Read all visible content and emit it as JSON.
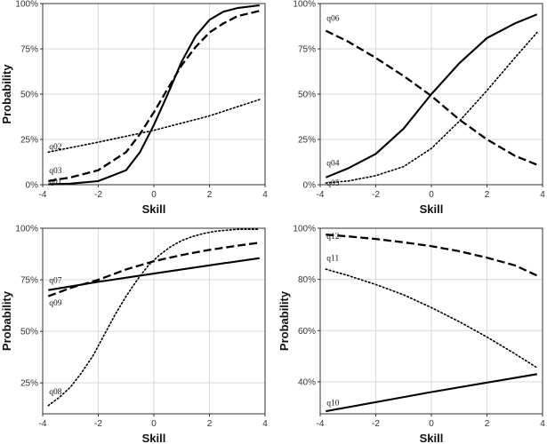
{
  "chart_data": [
    {
      "type": "line",
      "xlabel": "Skill",
      "ylabel": "Probability",
      "xlim": [
        -4,
        4
      ],
      "ylim": [
        0,
        1
      ],
      "x_ticks": [
        "-4",
        "-2",
        "0",
        "2",
        "4"
      ],
      "y_ticks": [
        {
          "value": 0,
          "label": "0%"
        },
        {
          "value": 0.25,
          "label": "25%"
        },
        {
          "value": 0.5,
          "label": "50%"
        },
        {
          "value": 0.75,
          "label": "75%"
        },
        {
          "value": 1,
          "label": "100%"
        }
      ],
      "grid": true,
      "series": [
        {
          "name": "q01",
          "style": "solid",
          "x": [
            -3.8,
            -3,
            -2,
            -1,
            -0.5,
            0,
            0.5,
            1,
            1.5,
            2,
            2.5,
            3,
            3.8
          ],
          "y": [
            0.002,
            0.006,
            0.02,
            0.08,
            0.18,
            0.33,
            0.5,
            0.68,
            0.82,
            0.91,
            0.955,
            0.975,
            0.99
          ],
          "label_anchor": [
            -3.8,
            0.0
          ]
        },
        {
          "name": "q02",
          "style": "dotted",
          "x": [
            -3.8,
            -2,
            0,
            2,
            3.8
          ],
          "y": [
            0.18,
            0.235,
            0.3,
            0.38,
            0.47
          ],
          "label_anchor": [
            -3.8,
            0.19
          ]
        },
        {
          "name": "q03",
          "style": "dashed",
          "x": [
            -3.8,
            -3,
            -2,
            -1,
            -0.5,
            0,
            0.5,
            1,
            1.5,
            2,
            2.5,
            3,
            3.8
          ],
          "y": [
            0.02,
            0.04,
            0.08,
            0.18,
            0.28,
            0.4,
            0.53,
            0.66,
            0.76,
            0.84,
            0.89,
            0.93,
            0.96
          ],
          "label_anchor": [
            -3.8,
            0.06
          ]
        }
      ]
    },
    {
      "type": "line",
      "xlabel": "Skill",
      "ylabel": "",
      "xlim": [
        -4,
        4
      ],
      "ylim": [
        0,
        1
      ],
      "x_ticks": [
        "-4",
        "-2",
        "0",
        "2",
        "4"
      ],
      "y_ticks": [
        {
          "value": 0,
          "label": "0%"
        },
        {
          "value": 0.25,
          "label": "25%"
        },
        {
          "value": 0.5,
          "label": "50%"
        },
        {
          "value": 0.75,
          "label": "75%"
        },
        {
          "value": 1,
          "label": "100%"
        }
      ],
      "grid": true,
      "series": [
        {
          "name": "q04",
          "style": "solid",
          "x": [
            -3.8,
            -3,
            -2,
            -1,
            0,
            1,
            2,
            3,
            3.8
          ],
          "y": [
            0.04,
            0.09,
            0.17,
            0.31,
            0.5,
            0.67,
            0.81,
            0.89,
            0.94
          ],
          "label_anchor": [
            -3.8,
            0.1
          ]
        },
        {
          "name": "q05",
          "style": "dotted",
          "x": [
            -3.8,
            -3,
            -2,
            -1,
            0,
            1,
            2,
            3,
            3.8
          ],
          "y": [
            0.01,
            0.02,
            0.05,
            0.1,
            0.2,
            0.35,
            0.52,
            0.7,
            0.84
          ],
          "label_anchor": [
            -3.8,
            -0.01
          ]
        },
        {
          "name": "q06",
          "style": "dashed",
          "x": [
            -3.8,
            -3,
            -2,
            -1,
            0,
            1,
            2,
            3,
            3.8
          ],
          "y": [
            0.85,
            0.79,
            0.7,
            0.6,
            0.49,
            0.36,
            0.25,
            0.16,
            0.11
          ],
          "label_anchor": [
            -3.8,
            0.9
          ]
        }
      ]
    },
    {
      "type": "line",
      "xlabel": "Skill",
      "ylabel": "Probability",
      "xlim": [
        -4,
        4
      ],
      "ylim": [
        0.1,
        1.0
      ],
      "x_ticks": [
        "-4",
        "-2",
        "0",
        "2",
        "4"
      ],
      "y_ticks": [
        {
          "value": 0.25,
          "label": "25%"
        },
        {
          "value": 0.5,
          "label": "50%"
        },
        {
          "value": 0.75,
          "label": "75%"
        },
        {
          "value": 1,
          "label": "100%"
        }
      ],
      "grid": true,
      "series": [
        {
          "name": "q07",
          "style": "solid",
          "x": [
            -3.8,
            -2,
            0,
            2,
            3.8
          ],
          "y": [
            0.7,
            0.74,
            0.78,
            0.82,
            0.855
          ],
          "label_anchor": [
            -3.8,
            0.73
          ]
        },
        {
          "name": "q08",
          "style": "dotted",
          "x": [
            -3.8,
            -3.4,
            -3,
            -2.6,
            -2.2,
            -1.8,
            -1.4,
            -1,
            -0.6,
            -0.2,
            0.2,
            0.6,
            1,
            1.4,
            1.8,
            2.2,
            2.6,
            3,
            3.4,
            3.8
          ],
          "y": [
            0.14,
            0.18,
            0.23,
            0.3,
            0.38,
            0.48,
            0.58,
            0.67,
            0.75,
            0.82,
            0.87,
            0.91,
            0.94,
            0.96,
            0.975,
            0.985,
            0.99,
            0.995,
            0.995,
            0.995
          ],
          "label_anchor": [
            -3.8,
            0.19
          ]
        },
        {
          "name": "q09",
          "style": "dashed",
          "x": [
            -3.8,
            -3,
            -2,
            -1,
            0,
            1,
            2,
            3,
            3.8
          ],
          "y": [
            0.67,
            0.71,
            0.75,
            0.8,
            0.84,
            0.87,
            0.895,
            0.915,
            0.93
          ],
          "label_anchor": [
            -3.8,
            0.62
          ]
        }
      ]
    },
    {
      "type": "line",
      "xlabel": "Skill",
      "ylabel": "Probability",
      "xlim": [
        -4,
        4
      ],
      "ylim": [
        0.275,
        1.0
      ],
      "x_ticks": [
        "-4",
        "-2",
        "0",
        "2",
        "4"
      ],
      "y_ticks": [
        {
          "value": 0.4,
          "label": "40%"
        },
        {
          "value": 0.6,
          "label": "60%"
        },
        {
          "value": 0.8,
          "label": "80%"
        },
        {
          "value": 1,
          "label": "100%"
        }
      ],
      "grid": true,
      "series": [
        {
          "name": "q10",
          "style": "solid",
          "x": [
            -3.8,
            0,
            3.8
          ],
          "y": [
            0.285,
            0.36,
            0.43
          ],
          "label_anchor": [
            -3.8,
            0.305
          ]
        },
        {
          "name": "q11",
          "style": "dotted",
          "x": [
            -3.8,
            -3,
            -2,
            -1,
            0,
            1,
            2,
            3,
            3.8
          ],
          "y": [
            0.84,
            0.815,
            0.78,
            0.74,
            0.69,
            0.635,
            0.575,
            0.51,
            0.455
          ],
          "label_anchor": [
            -3.8,
            0.87
          ]
        },
        {
          "name": "q12",
          "style": "dashed",
          "x": [
            -3.8,
            -3,
            -2,
            -1,
            0,
            1,
            2,
            3,
            3.8
          ],
          "y": [
            0.975,
            0.968,
            0.958,
            0.945,
            0.93,
            0.91,
            0.885,
            0.855,
            0.815
          ],
          "label_anchor": [
            -3.8,
            0.955
          ]
        }
      ]
    }
  ]
}
